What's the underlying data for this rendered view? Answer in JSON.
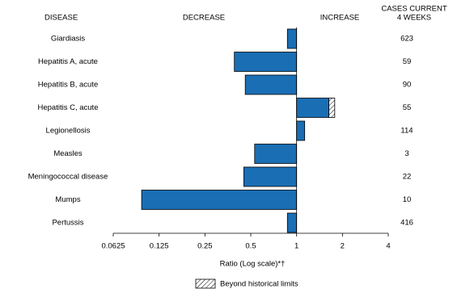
{
  "chart_data": {
    "type": "bar",
    "orientation": "horizontal",
    "headers": [
      "DISEASE",
      "DECREASE",
      "INCREASE",
      "CASES CURRENT",
      "4 WEEKS"
    ],
    "categories": [
      "Giardiasis",
      "Hepatitis A, acute",
      "Hepatitis B, acute",
      "Hepatitis C, acute",
      "Legionellosis",
      "Measles",
      "Meningococcal disease",
      "Mumps",
      "Pertussis"
    ],
    "values": [
      0.87,
      0.39,
      0.46,
      1.78,
      1.13,
      0.53,
      0.45,
      0.096,
      0.87
    ],
    "historical_limits": [
      null,
      null,
      null,
      1.63,
      null,
      null,
      null,
      null,
      null
    ],
    "cases": [
      623,
      59,
      90,
      55,
      114,
      3,
      22,
      10,
      416
    ],
    "color": "#1a6eb4",
    "xscale": "log",
    "xlim": [
      0.0625,
      4
    ],
    "xticks": [
      0.0625,
      0.125,
      0.25,
      0.5,
      1,
      2,
      4
    ],
    "xlabel": "Ratio (Log scale)*†",
    "legend": "Beyond historical limits"
  }
}
